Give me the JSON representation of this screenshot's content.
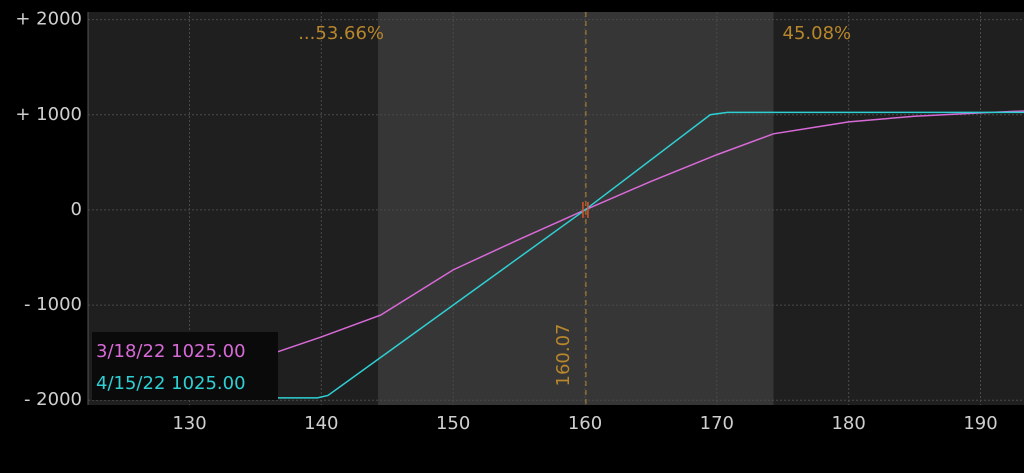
{
  "chart_data": {
    "type": "line",
    "xlim": [
      122.3,
      193.3
    ],
    "ylim": [
      -2050,
      2080
    ],
    "xticks": [
      130,
      140,
      150,
      160,
      170,
      180,
      190
    ],
    "yticks": [
      {
        "value": 2000,
        "label": "+ 2000"
      },
      {
        "value": 1000,
        "label": "+ 1000"
      },
      0,
      {
        "value": -1000,
        "label": "- 1000"
      },
      {
        "value": -2000,
        "label": "- 2000"
      }
    ],
    "grid": true,
    "range": {
      "x": [
        144.3,
        174.3
      ],
      "left_label": "...53.66%",
      "right_label": "45.08%",
      "color": "#363636"
    },
    "marker_x": 160.07,
    "marker_color": "#b8862b",
    "series": [
      {
        "name": "3/18/22 1025.00",
        "color": "#d86ad8",
        "x": [
          136.6,
          140,
          144.5,
          150,
          155,
          160,
          165,
          170,
          174.3,
          180,
          185,
          190,
          193.3
        ],
        "values": [
          -1495,
          -1335,
          -1105,
          -630,
          -310,
          0,
          300,
          580,
          800,
          925,
          985,
          1020,
          1040
        ]
      },
      {
        "name": "4/15/22 1025.00",
        "color": "#2ed0d4",
        "x": [
          136.7,
          139.7,
          140.5,
          160,
          169.5,
          170.8,
          193.3
        ],
        "values": [
          -1975,
          -1975,
          -1950,
          0,
          1000,
          1025,
          1025
        ]
      }
    ],
    "legend": "bottom-left"
  }
}
